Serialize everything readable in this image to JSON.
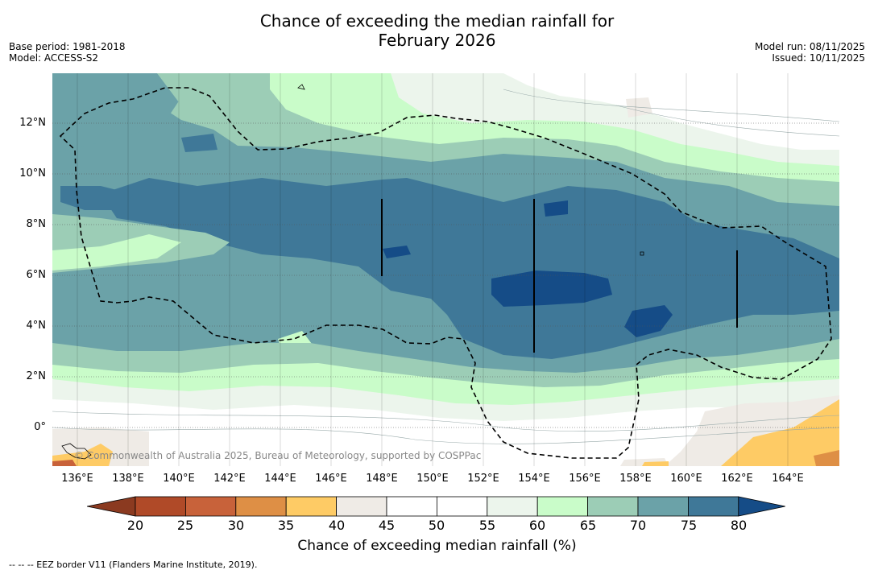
{
  "title_line1": "Chance of exceeding the median rainfall for",
  "title_line2": "February 2026",
  "base_period": "Base period: 1981-2018",
  "model": "Model: ACCESS-S2",
  "model_run": "Model run: 08/11/2025",
  "issued": "Issued: 10/11/2025",
  "lat_labels": [
    "12°N",
    "10°N",
    "8°N",
    "6°N",
    "4°N",
    "2°N",
    "0°"
  ],
  "lon_labels": [
    "136°E",
    "138°E",
    "140°E",
    "142°E",
    "144°E",
    "146°E",
    "148°E",
    "150°E",
    "152°E",
    "154°E",
    "156°E",
    "158°E",
    "160°E",
    "162°E",
    "164°E"
  ],
  "copyright": "© Commonwealth of Australia 2025, Bureau of Meteorology, supported by COSPPac",
  "colorbar_ticks": [
    "20",
    "25",
    "30",
    "35",
    "40",
    "45",
    "50",
    "55",
    "60",
    "65",
    "70",
    "75",
    "80"
  ],
  "colorbar_colors": [
    "#8b3a20",
    "#b04a28",
    "#c8623a",
    "#de8f45",
    "#fecb65",
    "#efebe6",
    "#ffffff",
    "#ffffff",
    "#ecf5ec",
    "#c9fcc9",
    "#9ccdb6",
    "#6ba2a8",
    "#3f7898",
    "#154c87"
  ],
  "colorbar_label": "Chance of exceeding median rainfall (%)",
  "footer": "--  --  -- EEZ border V11 (Flanders Marine Institute, 2019)."
}
